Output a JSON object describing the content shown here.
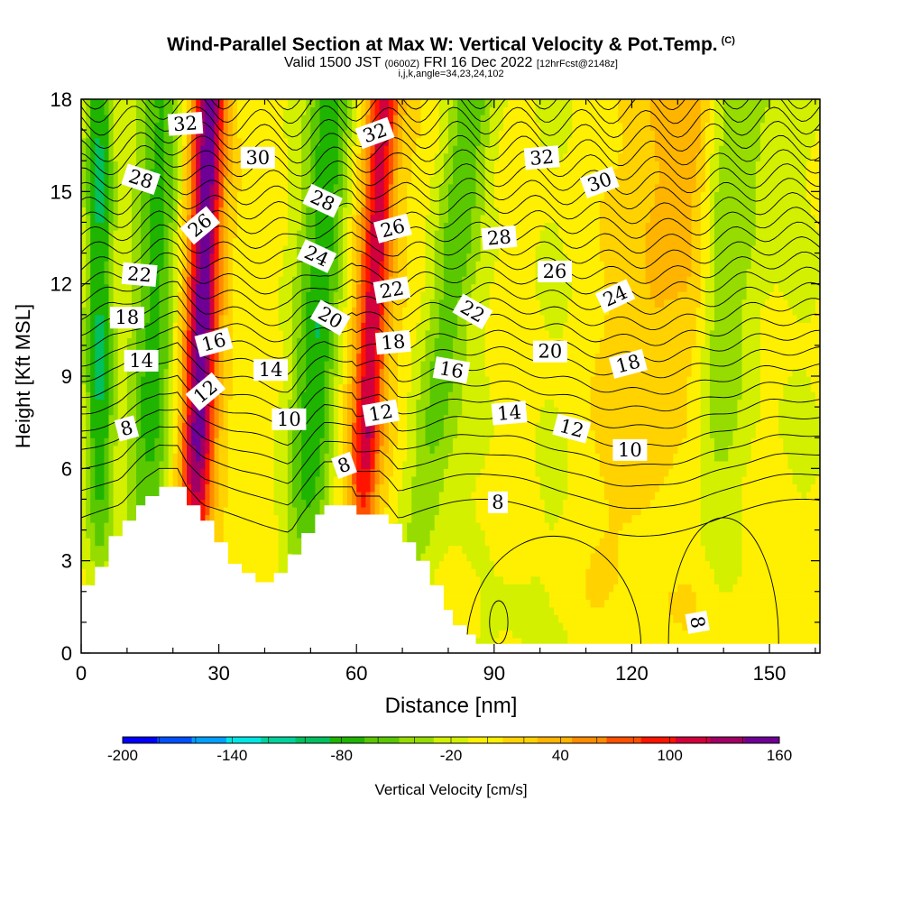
{
  "header": {
    "title": "Wind-Parallel Section at Max W: Vertical Velocity & Pot.Temp.",
    "title_tag": "(C)",
    "valid_prefix": "Valid 1500 JST",
    "valid_utc": "(0600Z)",
    "valid_date": "FRI 16 Dec 2022",
    "forecast": "[12hrFcst@2148z]",
    "indices": "i,j,k,angle=34,23,24,102"
  },
  "chart_data": {
    "type": "heatmap",
    "xlabel": "Distance [nm]",
    "ylabel": "Height [Kft MSL]",
    "xlim": [
      0,
      161
    ],
    "ylim": [
      0,
      18
    ],
    "x_ticks": [
      0,
      30,
      60,
      90,
      120,
      150
    ],
    "y_ticks": [
      0,
      3,
      6,
      9,
      12,
      15,
      18
    ],
    "colorbar": {
      "label": "Vertical Velocity [cm/s]",
      "tick_labels": [
        -200,
        -140,
        -80,
        -20,
        40,
        100,
        160
      ],
      "levels": [
        -200,
        -180,
        -160,
        -140,
        -120,
        -100,
        -80,
        -60,
        -40,
        -20,
        0,
        20,
        40,
        60,
        80,
        100,
        120,
        140,
        160
      ],
      "colors": [
        "#0000ff",
        "#0050ff",
        "#00a0ff",
        "#00e6e6",
        "#00d29b",
        "#00c060",
        "#1fb400",
        "#5ac800",
        "#96dc00",
        "#d2f000",
        "#ffef00",
        "#ffd200",
        "#ffb400",
        "#ff8c00",
        "#ff5000",
        "#ff1400",
        "#d2003c",
        "#a00064",
        "#6e0096"
      ]
    },
    "vertical_velocity_bands": [
      {
        "x_base": 4,
        "lean": 0,
        "width": 3,
        "value": -90
      },
      {
        "x_base": 14,
        "lean": 4,
        "width": 5,
        "value": -70
      },
      {
        "x_base": 24,
        "lean": 4,
        "width": 3,
        "value": 110
      },
      {
        "x_base": 25,
        "lean": 3,
        "width": 6,
        "value": 65
      },
      {
        "x_base": 48,
        "lean": 7,
        "width": 5,
        "value": -80
      },
      {
        "x_base": 60,
        "lean": 6,
        "width": 3,
        "value": 90
      },
      {
        "x_base": 61,
        "lean": 5,
        "width": 7,
        "value": 45
      },
      {
        "x_base": 72,
        "lean": 13,
        "width": 5,
        "value": -55
      },
      {
        "x_base": 121,
        "lean": 5,
        "width": 10,
        "value": 40
      },
      {
        "x_base": 134,
        "lean": 0,
        "width": 4,
        "value": 30
      },
      {
        "x_base": 131,
        "lean": 14,
        "width": 8,
        "value": -40
      }
    ],
    "terrain": [
      [
        0,
        2.2
      ],
      [
        3,
        2.8
      ],
      [
        6,
        3.8
      ],
      [
        9,
        4.3
      ],
      [
        12,
        4.8
      ],
      [
        14,
        5.1
      ],
      [
        17,
        5.4
      ],
      [
        21,
        5.4
      ],
      [
        23,
        4.8
      ],
      [
        26,
        4.3
      ],
      [
        29,
        3.6
      ],
      [
        32,
        2.9
      ],
      [
        35,
        2.6
      ],
      [
        38,
        2.3
      ],
      [
        42,
        2.6
      ],
      [
        45,
        3.2
      ],
      [
        48,
        3.9
      ],
      [
        51,
        4.5
      ],
      [
        53,
        4.8
      ],
      [
        59,
        4.8
      ],
      [
        60,
        4.5
      ],
      [
        65,
        4.5
      ],
      [
        67,
        4.2
      ],
      [
        70,
        3.6
      ],
      [
        73,
        3.0
      ],
      [
        76,
        2.2
      ],
      [
        79,
        1.4
      ],
      [
        81,
        0.9
      ],
      [
        84,
        0.6
      ],
      [
        86,
        0.3
      ],
      [
        88,
        0.3
      ],
      [
        90,
        0.3
      ]
    ],
    "isotherm_levels": [
      8,
      10,
      12,
      14,
      16,
      18,
      20,
      22,
      24,
      26,
      28,
      30,
      32
    ],
    "isotherm_labels": [
      {
        "text": "32",
        "x": 22.7,
        "y": 17.2,
        "angle": -4
      },
      {
        "text": "30",
        "x": 38.5,
        "y": 16.1,
        "angle": 0
      },
      {
        "text": "28",
        "x": 13.0,
        "y": 15.4,
        "angle": 18
      },
      {
        "text": "26",
        "x": 25.9,
        "y": 13.9,
        "angle": -40
      },
      {
        "text": "22",
        "x": 12.7,
        "y": 12.3,
        "angle": 5
      },
      {
        "text": "18",
        "x": 10.0,
        "y": 10.9,
        "angle": 0
      },
      {
        "text": "16",
        "x": 28.9,
        "y": 10.1,
        "angle": -15
      },
      {
        "text": "14",
        "x": 13.1,
        "y": 9.5,
        "angle": 0
      },
      {
        "text": "12",
        "x": 27.1,
        "y": 8.5,
        "angle": -40
      },
      {
        "text": "8",
        "x": 9.9,
        "y": 7.3,
        "angle": -15
      },
      {
        "text": "32",
        "x": 64.0,
        "y": 16.9,
        "angle": -20
      },
      {
        "text": "28",
        "x": 52.6,
        "y": 14.7,
        "angle": 25
      },
      {
        "text": "24",
        "x": 51.3,
        "y": 12.9,
        "angle": 25
      },
      {
        "text": "20",
        "x": 54.3,
        "y": 10.9,
        "angle": 30
      },
      {
        "text": "26",
        "x": 67.9,
        "y": 13.8,
        "angle": -15
      },
      {
        "text": "22",
        "x": 67.7,
        "y": 11.8,
        "angle": -10
      },
      {
        "text": "18",
        "x": 68.0,
        "y": 10.1,
        "angle": -5
      },
      {
        "text": "14",
        "x": 41.3,
        "y": 9.2,
        "angle": 0
      },
      {
        "text": "10",
        "x": 45.3,
        "y": 7.6,
        "angle": 0
      },
      {
        "text": "12",
        "x": 65.3,
        "y": 7.8,
        "angle": -10
      },
      {
        "text": "8",
        "x": 57.3,
        "y": 6.1,
        "angle": -20
      },
      {
        "text": "16",
        "x": 80.7,
        "y": 9.2,
        "angle": 10
      },
      {
        "text": "22",
        "x": 85.3,
        "y": 11.1,
        "angle": 30
      },
      {
        "text": "28",
        "x": 91.1,
        "y": 13.5,
        "angle": -5
      },
      {
        "text": "32",
        "x": 100.4,
        "y": 16.1,
        "angle": -5
      },
      {
        "text": "30",
        "x": 113.0,
        "y": 15.3,
        "angle": -20
      },
      {
        "text": "26",
        "x": 103.2,
        "y": 12.4,
        "angle": 0
      },
      {
        "text": "24",
        "x": 116.4,
        "y": 11.6,
        "angle": -25
      },
      {
        "text": "20",
        "x": 102.2,
        "y": 9.8,
        "angle": 0
      },
      {
        "text": "18",
        "x": 119.2,
        "y": 9.4,
        "angle": -15
      },
      {
        "text": "14",
        "x": 93.3,
        "y": 7.8,
        "angle": -5
      },
      {
        "text": "12",
        "x": 106.9,
        "y": 7.3,
        "angle": 15
      },
      {
        "text": "10",
        "x": 119.6,
        "y": 6.6,
        "angle": 0
      },
      {
        "text": "8",
        "x": 90.8,
        "y": 4.9,
        "angle": 0
      },
      {
        "text": "8",
        "x": 134.3,
        "y": 1.0,
        "angle": 80
      }
    ]
  }
}
